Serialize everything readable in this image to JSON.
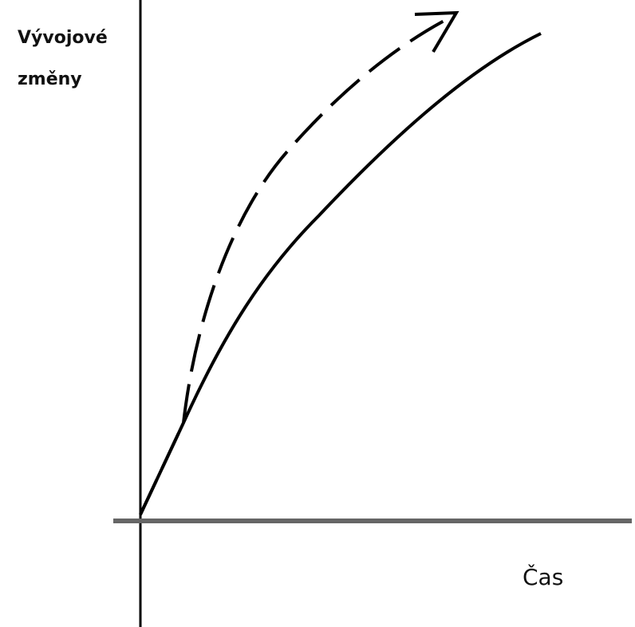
{
  "axes": {
    "y_label_lines": [
      "Vývojové",
      "změny"
    ],
    "x_label": "Čas"
  }
}
